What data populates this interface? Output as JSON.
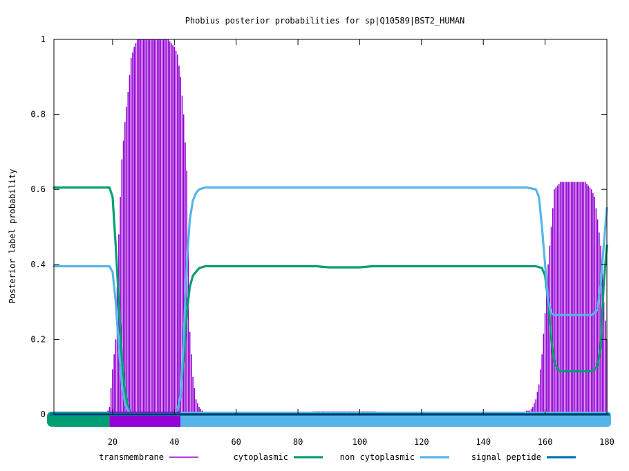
{
  "chart_data": {
    "type": "line",
    "title": "Phobius posterior probabilities for sp|Q10589|BST2_HUMAN",
    "xlabel": "",
    "ylabel": "Posterior label probability",
    "xlim": [
      1,
      180
    ],
    "ylim": [
      0,
      1
    ],
    "x_ticks": [
      20,
      40,
      60,
      80,
      100,
      120,
      140,
      160,
      180
    ],
    "y_ticks": [
      0,
      0.2,
      0.4,
      0.6,
      0.8,
      1
    ],
    "y_tick_labels": [
      "0",
      "0.2",
      "0.4",
      "0.6",
      "0.8",
      "1"
    ],
    "legend_placement": "bottom",
    "series": [
      {
        "name": "transmembrane",
        "style": "impulses",
        "color": "#9400d3",
        "points": [
          [
            1,
            0
          ],
          [
            18,
            0
          ],
          [
            19,
            0.02
          ],
          [
            20,
            0.12
          ],
          [
            21,
            0.2
          ],
          [
            22,
            0.48
          ],
          [
            23,
            0.68
          ],
          [
            24,
            0.78
          ],
          [
            25,
            0.86
          ],
          [
            26,
            0.95
          ],
          [
            27,
            0.98
          ],
          [
            28,
            1
          ],
          [
            29,
            1
          ],
          [
            30,
            1
          ],
          [
            31,
            1
          ],
          [
            32,
            1
          ],
          [
            33,
            1
          ],
          [
            34,
            1
          ],
          [
            35,
            1
          ],
          [
            36,
            1
          ],
          [
            37,
            1
          ],
          [
            38,
            1
          ],
          [
            39,
            0.99
          ],
          [
            40,
            0.98
          ],
          [
            41,
            0.96
          ],
          [
            42,
            0.9
          ],
          [
            43,
            0.8
          ],
          [
            44,
            0.65
          ],
          [
            45,
            0.22
          ],
          [
            46,
            0.1
          ],
          [
            47,
            0.04
          ],
          [
            48,
            0.02
          ],
          [
            49,
            0.01
          ],
          [
            50,
            0
          ],
          [
            84,
            0
          ],
          [
            85,
            0.008
          ],
          [
            105,
            0.008
          ],
          [
            106,
            0
          ],
          [
            152,
            0
          ],
          [
            153,
            0.005
          ],
          [
            154,
            0.01
          ],
          [
            155,
            0.01
          ],
          [
            156,
            0.02
          ],
          [
            157,
            0.04
          ],
          [
            158,
            0.08
          ],
          [
            159,
            0.16
          ],
          [
            160,
            0.27
          ],
          [
            161,
            0.4
          ],
          [
            162,
            0.5
          ],
          [
            163,
            0.6
          ],
          [
            164,
            0.61
          ],
          [
            165,
            0.62
          ],
          [
            166,
            0.62
          ],
          [
            167,
            0.62
          ],
          [
            168,
            0.62
          ],
          [
            169,
            0.62
          ],
          [
            170,
            0.62
          ],
          [
            171,
            0.62
          ],
          [
            172,
            0.62
          ],
          [
            173,
            0.62
          ],
          [
            174,
            0.61
          ],
          [
            175,
            0.6
          ],
          [
            176,
            0.58
          ],
          [
            177,
            0.52
          ],
          [
            178,
            0.45
          ],
          [
            179,
            0.3
          ],
          [
            180,
            0.2
          ]
        ]
      },
      {
        "name": "cytoplasmic",
        "style": "line",
        "color": "#009e73",
        "points": [
          [
            1,
            0.605
          ],
          [
            19,
            0.605
          ],
          [
            20,
            0.58
          ],
          [
            21,
            0.45
          ],
          [
            22,
            0.3
          ],
          [
            23,
            0.15
          ],
          [
            24,
            0.06
          ],
          [
            25,
            0.02
          ],
          [
            26,
            0
          ],
          [
            40,
            0
          ],
          [
            41,
            0.01
          ],
          [
            42,
            0.05
          ],
          [
            43,
            0.15
          ],
          [
            44,
            0.27
          ],
          [
            45,
            0.34
          ],
          [
            46,
            0.37
          ],
          [
            47,
            0.38
          ],
          [
            48,
            0.39
          ],
          [
            50,
            0.395
          ],
          [
            86,
            0.395
          ],
          [
            90,
            0.392
          ],
          [
            100,
            0.392
          ],
          [
            104,
            0.395
          ],
          [
            157,
            0.395
          ],
          [
            159,
            0.39
          ],
          [
            160,
            0.37
          ],
          [
            161,
            0.3
          ],
          [
            162,
            0.2
          ],
          [
            163,
            0.14
          ],
          [
            164,
            0.12
          ],
          [
            165,
            0.115
          ],
          [
            175,
            0.115
          ],
          [
            176,
            0.12
          ],
          [
            177,
            0.13
          ],
          [
            178,
            0.18
          ],
          [
            179,
            0.35
          ],
          [
            180,
            0.45
          ]
        ]
      },
      {
        "name": "non cytoplasmic",
        "style": "line",
        "color": "#56b4e9",
        "points": [
          [
            1,
            0.395
          ],
          [
            19,
            0.395
          ],
          [
            20,
            0.38
          ],
          [
            21,
            0.3
          ],
          [
            22,
            0.18
          ],
          [
            23,
            0.08
          ],
          [
            24,
            0.03
          ],
          [
            25,
            0.01
          ],
          [
            26,
            0
          ],
          [
            40,
            0
          ],
          [
            41,
            0.01
          ],
          [
            42,
            0.05
          ],
          [
            43,
            0.2
          ],
          [
            44,
            0.4
          ],
          [
            45,
            0.52
          ],
          [
            46,
            0.57
          ],
          [
            47,
            0.59
          ],
          [
            48,
            0.6
          ],
          [
            50,
            0.605
          ],
          [
            154,
            0.605
          ],
          [
            157,
            0.6
          ],
          [
            158,
            0.58
          ],
          [
            159,
            0.5
          ],
          [
            160,
            0.4
          ],
          [
            161,
            0.3
          ],
          [
            162,
            0.27
          ],
          [
            163,
            0.265
          ],
          [
            175,
            0.265
          ],
          [
            176,
            0.27
          ],
          [
            177,
            0.28
          ],
          [
            178,
            0.35
          ],
          [
            179,
            0.45
          ],
          [
            180,
            0.55
          ]
        ]
      },
      {
        "name": "signal peptide",
        "style": "line",
        "color": "#0072b2",
        "points": [
          [
            1,
            0
          ],
          [
            180,
            0
          ]
        ]
      }
    ],
    "topology_bar": {
      "segments": [
        {
          "label": "cytoplasmic",
          "start": 1,
          "end": 19,
          "color": "#009e73"
        },
        {
          "label": "transmembrane",
          "start": 19,
          "end": 42,
          "color": "#9400d3"
        },
        {
          "label": "non cytoplasmic",
          "start": 42,
          "end": 180,
          "color": "#56b4e9"
        }
      ]
    }
  }
}
